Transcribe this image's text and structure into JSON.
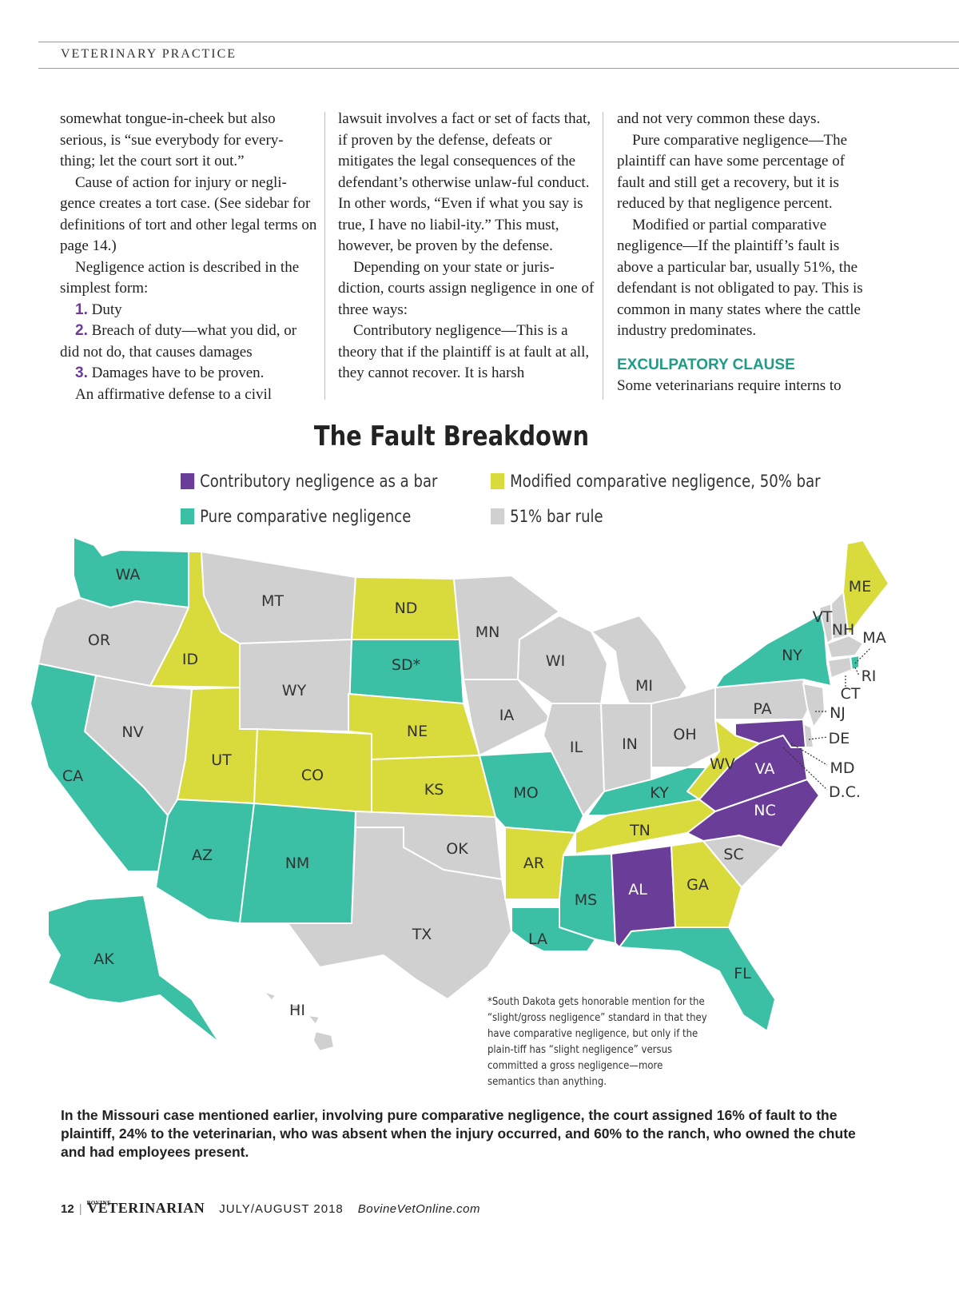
{
  "header": {
    "section": "VETERINARY PRACTICE"
  },
  "article": {
    "col1": [
      "somewhat tongue-in-cheek but also serious, is “sue everybody for every-thing; let the court sort it out.”",
      "Cause of action for injury or negli-gence creates a tort case. (See sidebar for definitions of tort and other legal terms on page 14.)",
      "Negligence action is described in the simplest form:"
    ],
    "list": [
      {
        "num": "1.",
        "text": "Duty"
      },
      {
        "num": "2.",
        "text": "Breach of duty—what you did, or did not do, that causes damages"
      },
      {
        "num": "3.",
        "text": "Damages have to be proven."
      }
    ],
    "col1_end": "An affirmative defense to a civil",
    "col2": [
      "lawsuit involves a fact or set of facts that, if proven by the defense, defeats or mitigates the legal consequences of the defendant’s otherwise unlaw-ful conduct. In other words, “Even if what you say is true, I have no liabil-ity.” This must, however, be proven by the defense.",
      "Depending on your state or juris-diction, courts assign negligence in one of three ways:",
      "Contributory negligence—This is a theory that if the plaintiff is at fault at all, they cannot recover. It is harsh"
    ],
    "col3": [
      "and not very common these days.",
      "Pure comparative negligence—The plaintiff can have some percentage of fault and still get a recovery, but it is reduced by that negligence percent.",
      "Modified or partial comparative negligence—If the plaintiff’s fault is above a particular bar, usually 51%, the defendant is not obligated to pay. This is common in many states where the cattle industry predominates."
    ],
    "subhead": "EXCULPATORY CLAUSE",
    "col3_end": "Some veterinarians require interns to"
  },
  "chart": {
    "title": "The Fault Breakdown",
    "legend": [
      {
        "label": "Contributory negligence as a bar",
        "color": "#6a3d98"
      },
      {
        "label": "Modified comparative negligence, 50% bar",
        "color": "#d9da3b"
      },
      {
        "label": "Pure comparative negligence",
        "color": "#3bbfa5"
      },
      {
        "label": "51% bar rule",
        "color": "#d0d0d0"
      }
    ],
    "states": {
      "WA": "pure",
      "OR": "51",
      "ID": "modified",
      "MT": "51",
      "ND": "modified",
      "SD": "pure",
      "WY": "51",
      "NV": "51",
      "CA": "pure",
      "UT": "modified",
      "CO": "modified",
      "NE": "modified",
      "KS": "modified",
      "AZ": "pure",
      "NM": "pure",
      "OK": "51",
      "TX": "51",
      "MN": "51",
      "IA": "51",
      "MO": "pure",
      "AR": "modified",
      "LA": "pure",
      "WI": "51",
      "IL": "51",
      "MS": "pure",
      "MI": "51",
      "IN": "51",
      "OH": "51",
      "KY": "pure",
      "TN": "modified",
      "AL": "contributory",
      "GA": "modified",
      "FL": "pure",
      "SC": "51",
      "NC": "contributory",
      "VA": "contributory",
      "WV": "modified",
      "PA": "51",
      "NY": "pure",
      "VT": "51",
      "NH": "51",
      "ME": "modified",
      "MA": "51",
      "RI": "pure",
      "CT": "51",
      "NJ": "51",
      "DE": "51",
      "MD": "contributory",
      "D.C.": "contributory",
      "AK": "pure",
      "HI": "51"
    },
    "labels": {
      "WA": "WA",
      "OR": "OR",
      "ID": "ID",
      "MT": "MT",
      "ND": "ND",
      "SD": "SD*",
      "WY": "WY",
      "NV": "NV",
      "CA": "CA",
      "UT": "UT",
      "CO": "CO",
      "NE": "NE",
      "KS": "KS",
      "AZ": "AZ",
      "NM": "NM",
      "OK": "OK",
      "TX": "TX",
      "MN": "MN",
      "IA": "IA",
      "MO": "MO",
      "AR": "AR",
      "LA": "LA",
      "WI": "WI",
      "IL": "IL",
      "MS": "MS",
      "MI": "MI",
      "IN": "IN",
      "OH": "OH",
      "KY": "KY",
      "TN": "TN",
      "AL": "AL",
      "GA": "GA",
      "FL": "FL",
      "SC": "SC",
      "NC": "NC",
      "VA": "VA",
      "WV": "WV",
      "PA": "PA",
      "NY": "NY",
      "VT": "VT",
      "NH": "NH",
      "ME": "ME",
      "MA": "MA",
      "RI": "RI",
      "CT": "CT",
      "NJ": "NJ",
      "DE": "DE",
      "MD": "MD",
      "DC": "D.C.",
      "AK": "AK",
      "HI": "HI"
    },
    "footnote": "*South Dakota gets honorable mention for the “slight/gross negligence” standard in that they have comparative negligence, but only if the plain-tiff has “slight negligence” versus committed a gross negligence—more semantics than anything."
  },
  "caption": "In the Missouri case mentioned earlier, involving pure comparative negligence, the court assigned 16% of fault to the plaintiff, 24% to the veterinarian, who was absent when the injury occurred, and 60% to the ranch, who owned the chute and had employees present.",
  "footer": {
    "page": "12",
    "sep": "|",
    "logo_small": "BOVINE",
    "logo": "VETERINARIAN",
    "date": "JULY/AUGUST 2018",
    "website": "BovineVetOnline.com"
  }
}
